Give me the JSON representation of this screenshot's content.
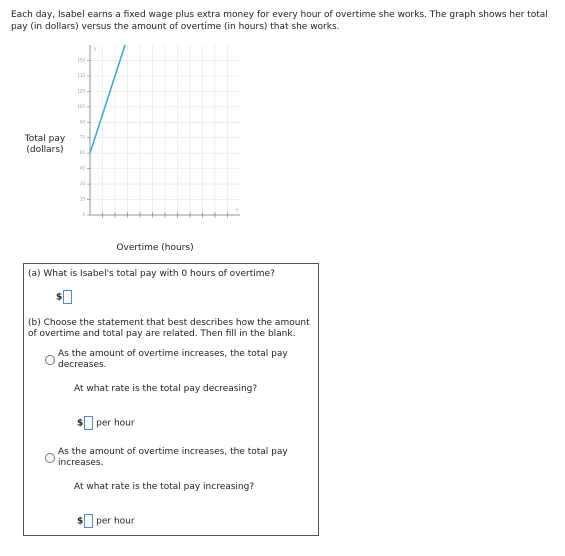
{
  "intro": "Each day, Isabel earns a fixed wage plus extra money for every hour of overtime she works. The graph shows her total pay (in dollars) versus the amount of overtime (in hours) that she works.",
  "chart_data": {
    "type": "line",
    "x_label": "Overtime (hours)",
    "y_label": "Total pay (dollars)",
    "x_axis_letter": "x",
    "y_axis_letter": "y",
    "x": [
      0,
      2.8
    ],
    "series": [
      {
        "color": "#3aa6c9",
        "values": [
          60,
          165
        ]
      }
    ],
    "xlim": [
      0,
      12
    ],
    "xticks": [
      1,
      2,
      3,
      4,
      5,
      6,
      7,
      8,
      9,
      10,
      11
    ],
    "ylim": [
      0,
      165
    ],
    "yticks": [
      0,
      15,
      30,
      45,
      60,
      75,
      90,
      105,
      120,
      135,
      150
    ],
    "grid": true
  },
  "part_a": {
    "question": "(a) What is Isabel's total pay with 0 hours of overtime?",
    "currency": "$"
  },
  "part_b": {
    "question": "(b) Choose the statement that best describes how the amount of overtime and total pay are related. Then fill in the blank.",
    "options": [
      {
        "statement": "As the amount of overtime increases, the total pay decreases.",
        "rate_question": "At what rate is the total pay decreasing?",
        "currency": "$",
        "unit": "per hour"
      },
      {
        "statement": "As the amount of overtime increases, the total pay increases.",
        "rate_question": "At what rate is the total pay increasing?",
        "currency": "$",
        "unit": "per hour"
      }
    ]
  }
}
